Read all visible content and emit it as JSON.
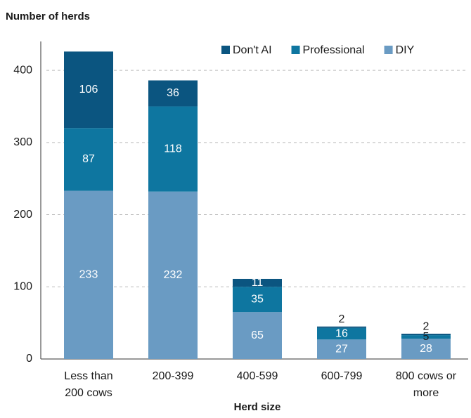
{
  "chart_data": {
    "type": "stacked_bar",
    "title": "Number of herds",
    "x_label": "Herd size",
    "categories": [
      "Less than 200 cows",
      "200-399",
      "400-599",
      "600-799",
      "800 cows or more"
    ],
    "series": [
      {
        "name": "DIY",
        "color": "#6a9bc3",
        "values": [
          233,
          232,
          65,
          27,
          28
        ]
      },
      {
        "name": "Professional",
        "color": "#0e76a0",
        "values": [
          87,
          118,
          35,
          16,
          5
        ]
      },
      {
        "name": "Don't AI",
        "color": "#0b5580",
        "values": [
          106,
          36,
          11,
          2,
          2
        ]
      }
    ],
    "ylim": [
      0,
      440
    ],
    "yticks": [
      0,
      100,
      200,
      300,
      400
    ],
    "grid": true,
    "legend": "top-right"
  }
}
